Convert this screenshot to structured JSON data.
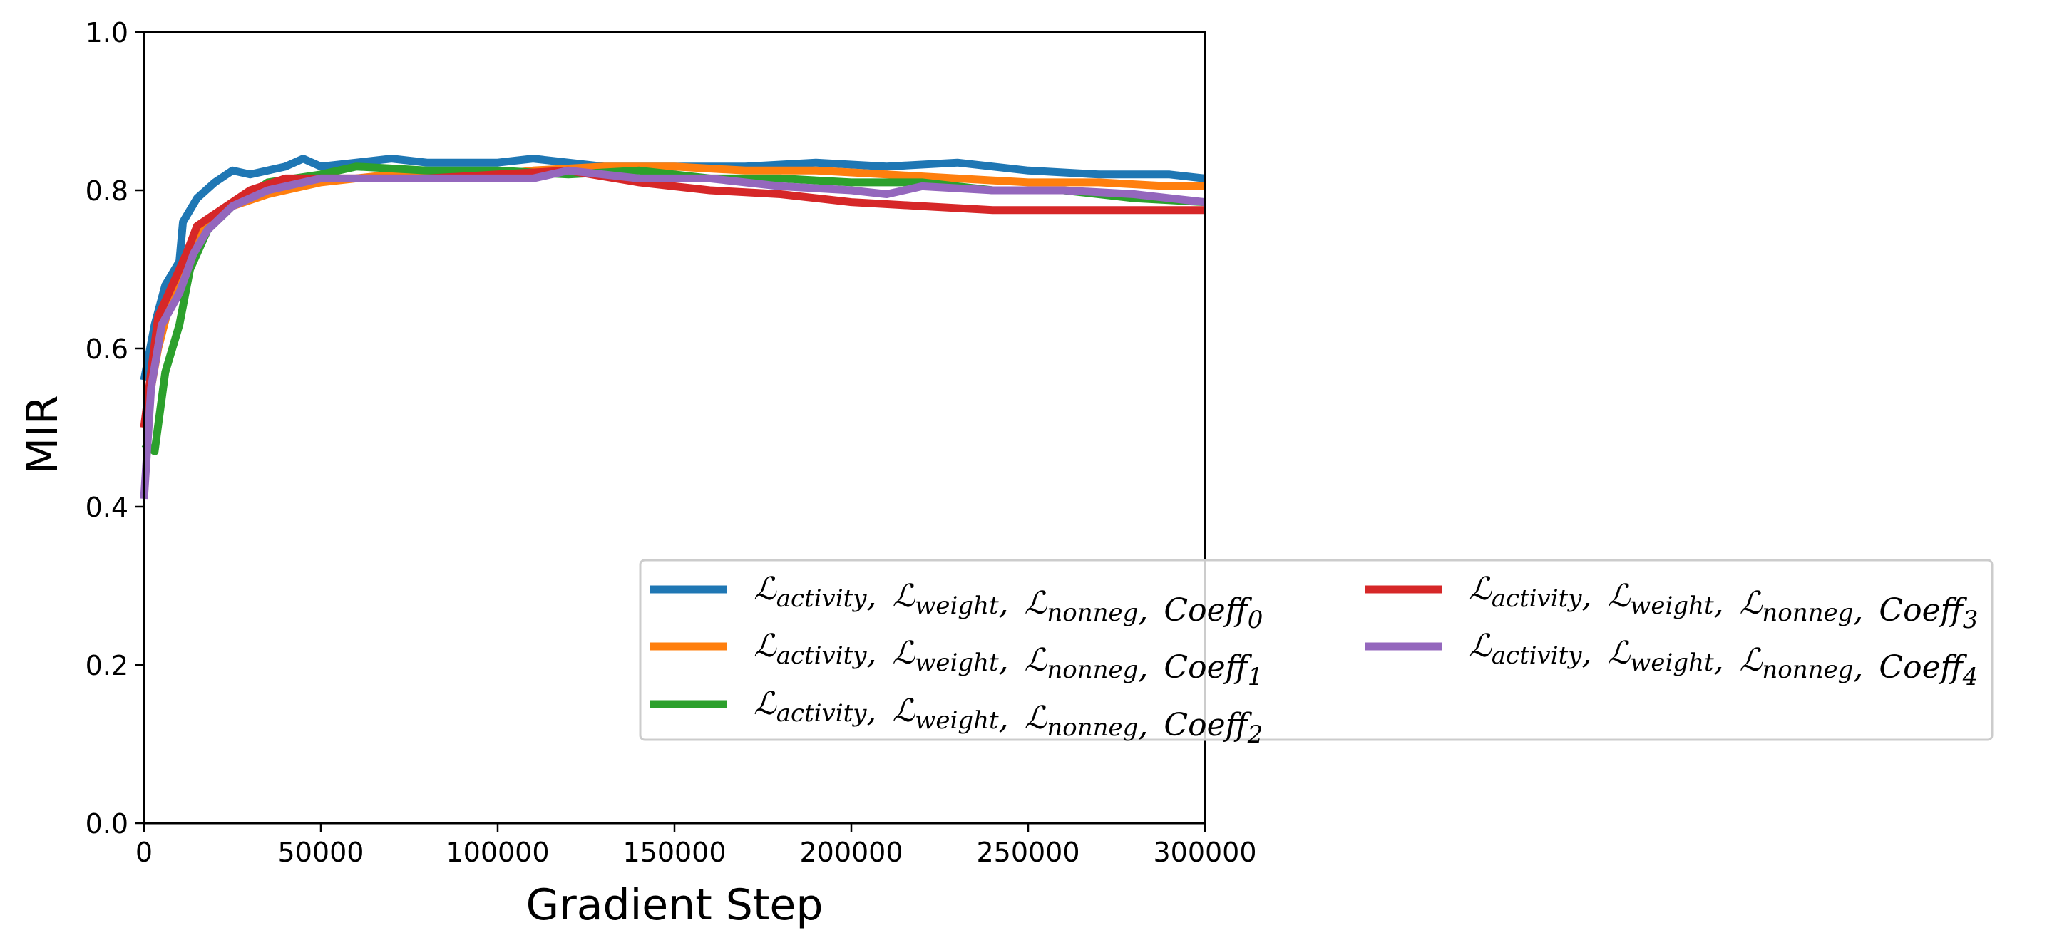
{
  "chart_data": {
    "type": "line",
    "title": "",
    "xlabel": "Gradient Step",
    "ylabel": "MIR",
    "xlim": [
      0,
      300000
    ],
    "ylim": [
      0.0,
      1.0
    ],
    "xticks": [
      "0",
      "50000",
      "100000",
      "150000",
      "200000",
      "250000",
      "300000"
    ],
    "yticks": [
      "0.0",
      "0.2",
      "0.4",
      "0.6",
      "0.8",
      "1.0"
    ],
    "grid": false,
    "legend_position": "lower-right",
    "legend_columns": 2,
    "series": [
      {
        "name": "ℒactivity, ℒweight, ℒnonneg, Coeff0",
        "color": "#1f77b4",
        "points": [
          [
            0,
            0.56
          ],
          [
            3000,
            0.63
          ],
          [
            6000,
            0.68
          ],
          [
            10000,
            0.71
          ],
          [
            11000,
            0.76
          ],
          [
            15000,
            0.79
          ],
          [
            20000,
            0.81
          ],
          [
            25000,
            0.825
          ],
          [
            30000,
            0.82
          ],
          [
            40000,
            0.83
          ],
          [
            45000,
            0.84
          ],
          [
            50000,
            0.83
          ],
          [
            60000,
            0.835
          ],
          [
            70000,
            0.84
          ],
          [
            80000,
            0.835
          ],
          [
            90000,
            0.835
          ],
          [
            100000,
            0.835
          ],
          [
            110000,
            0.84
          ],
          [
            120000,
            0.835
          ],
          [
            130000,
            0.83
          ],
          [
            150000,
            0.83
          ],
          [
            170000,
            0.83
          ],
          [
            190000,
            0.835
          ],
          [
            210000,
            0.83
          ],
          [
            230000,
            0.835
          ],
          [
            250000,
            0.825
          ],
          [
            270000,
            0.82
          ],
          [
            290000,
            0.82
          ],
          [
            300000,
            0.815
          ]
        ]
      },
      {
        "name": "ℒactivity, ℒweight, ℒnonneg, Coeff1",
        "color": "#ff7f0e",
        "points": [
          [
            0,
            0.5
          ],
          [
            4000,
            0.6
          ],
          [
            8000,
            0.67
          ],
          [
            12000,
            0.72
          ],
          [
            18000,
            0.76
          ],
          [
            25000,
            0.78
          ],
          [
            35000,
            0.795
          ],
          [
            50000,
            0.81
          ],
          [
            70000,
            0.82
          ],
          [
            90000,
            0.815
          ],
          [
            110000,
            0.825
          ],
          [
            130000,
            0.83
          ],
          [
            150000,
            0.83
          ],
          [
            170000,
            0.825
          ],
          [
            190000,
            0.825
          ],
          [
            210000,
            0.82
          ],
          [
            230000,
            0.815
          ],
          [
            250000,
            0.81
          ],
          [
            270000,
            0.81
          ],
          [
            290000,
            0.805
          ],
          [
            300000,
            0.805
          ]
        ]
      },
      {
        "name": "ℒactivity, ℒweight, ℒnonneg, Coeff2",
        "color": "#2ca02c",
        "points": [
          [
            0,
            0.48
          ],
          [
            3000,
            0.47
          ],
          [
            6000,
            0.57
          ],
          [
            10000,
            0.63
          ],
          [
            13000,
            0.7
          ],
          [
            18000,
            0.75
          ],
          [
            25000,
            0.78
          ],
          [
            35000,
            0.81
          ],
          [
            50000,
            0.82
          ],
          [
            60000,
            0.83
          ],
          [
            80000,
            0.825
          ],
          [
            100000,
            0.825
          ],
          [
            120000,
            0.82
          ],
          [
            140000,
            0.825
          ],
          [
            160000,
            0.815
          ],
          [
            180000,
            0.815
          ],
          [
            200000,
            0.81
          ],
          [
            220000,
            0.81
          ],
          [
            240000,
            0.8
          ],
          [
            260000,
            0.8
          ],
          [
            280000,
            0.79
          ],
          [
            300000,
            0.785
          ]
        ]
      },
      {
        "name": "ℒactivity, ℒweight, ℒnonneg, Coeff3",
        "color": "#d62728",
        "points": [
          [
            0,
            0.5
          ],
          [
            4000,
            0.64
          ],
          [
            8000,
            0.68
          ],
          [
            12000,
            0.72
          ],
          [
            15000,
            0.755
          ],
          [
            20000,
            0.77
          ],
          [
            30000,
            0.8
          ],
          [
            40000,
            0.815
          ],
          [
            60000,
            0.815
          ],
          [
            80000,
            0.815
          ],
          [
            100000,
            0.82
          ],
          [
            120000,
            0.825
          ],
          [
            140000,
            0.81
          ],
          [
            160000,
            0.8
          ],
          [
            180000,
            0.795
          ],
          [
            200000,
            0.785
          ],
          [
            220000,
            0.78
          ],
          [
            240000,
            0.775
          ],
          [
            260000,
            0.775
          ],
          [
            280000,
            0.775
          ],
          [
            300000,
            0.775
          ]
        ]
      },
      {
        "name": "ℒactivity, ℒweight, ℒnonneg, Coeff4",
        "color": "#9467bd",
        "points": [
          [
            0,
            0.41
          ],
          [
            2000,
            0.55
          ],
          [
            5000,
            0.63
          ],
          [
            10000,
            0.67
          ],
          [
            14000,
            0.72
          ],
          [
            18000,
            0.75
          ],
          [
            25000,
            0.78
          ],
          [
            35000,
            0.8
          ],
          [
            50000,
            0.815
          ],
          [
            70000,
            0.815
          ],
          [
            90000,
            0.815
          ],
          [
            110000,
            0.815
          ],
          [
            120000,
            0.825
          ],
          [
            140000,
            0.815
          ],
          [
            160000,
            0.815
          ],
          [
            180000,
            0.805
          ],
          [
            200000,
            0.8
          ],
          [
            210000,
            0.795
          ],
          [
            220000,
            0.805
          ],
          [
            240000,
            0.8
          ],
          [
            260000,
            0.8
          ],
          [
            280000,
            0.795
          ],
          [
            300000,
            0.785
          ]
        ]
      }
    ]
  },
  "legend": {
    "entries": [
      {
        "loss_a": "activity",
        "loss_b": "weight",
        "loss_c": "nonneg",
        "coeff_sub": "0"
      },
      {
        "loss_a": "activity",
        "loss_b": "weight",
        "loss_c": "nonneg",
        "coeff_sub": "1"
      },
      {
        "loss_a": "activity",
        "loss_b": "weight",
        "loss_c": "nonneg",
        "coeff_sub": "2"
      },
      {
        "loss_a": "activity",
        "loss_b": "weight",
        "loss_c": "nonneg",
        "coeff_sub": "3"
      },
      {
        "loss_a": "activity",
        "loss_b": "weight",
        "loss_c": "nonneg",
        "coeff_sub": "4"
      }
    ],
    "script_L": "ℒ",
    "coeff_text": "Coeff",
    "separator": ","
  }
}
